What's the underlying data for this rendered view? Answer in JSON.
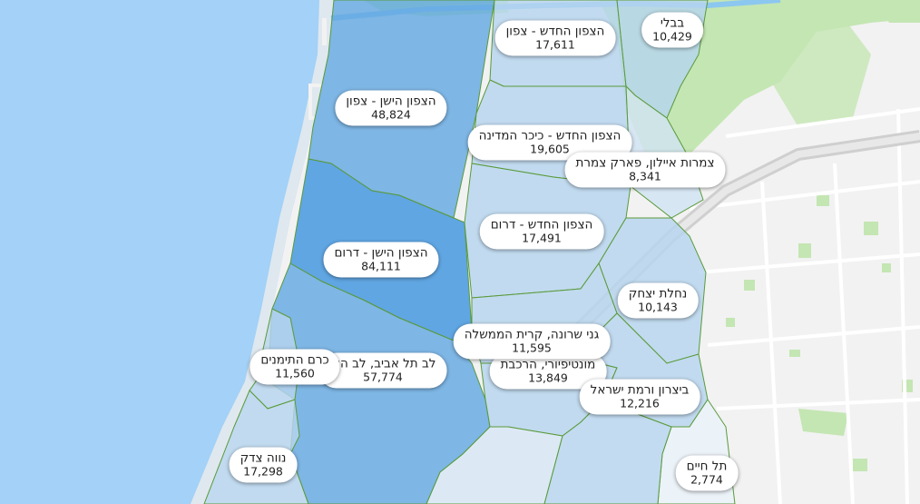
{
  "colors": {
    "sea": "#a3d1f7",
    "land": "#f2f2f2",
    "park": "#c4e6b3",
    "border": "#5a9a3a",
    "choropleth_scale": [
      "#e9f1f9",
      "#d1e3f3",
      "#b6d4ee",
      "#8fbde6",
      "#64a8e2",
      "#3f95df"
    ]
  },
  "neighborhoods": [
    {
      "id": "bavli",
      "name": "בבלי",
      "count": "10,429",
      "value": 10429
    },
    {
      "id": "tzafon-hahadash-north",
      "name": "הצפון החדש - צפון",
      "count": "17,611",
      "value": 17611
    },
    {
      "id": "tzafon-hayashan-north",
      "name": "הצפון הישן - צפון",
      "count": "48,824",
      "value": 48824
    },
    {
      "id": "tzafon-hahadash-kikar",
      "name": "הצפון החדש - כיכר המדינה",
      "count": "19,605",
      "value": 19605
    },
    {
      "id": "tzameret",
      "name": "צמרות איילון, פארק צמרת",
      "count": "8,341",
      "value": 8341
    },
    {
      "id": "tzafon-hahadash-south",
      "name": "הצפון החדש - דרום",
      "count": "17,491",
      "value": 17491
    },
    {
      "id": "tzafon-hayashan-south",
      "name": "הצפון הישן - דרום",
      "count": "84,111",
      "value": 84111
    },
    {
      "id": "nahalat-yitzhak",
      "name": "נחלת יצחק",
      "count": "10,143",
      "value": 10143
    },
    {
      "id": "ganei-sarona",
      "name": "גני שרונה, קרית הממשלה",
      "count": "11,595",
      "value": 11595
    },
    {
      "id": "lev-tel-aviv",
      "name": "לב תל אביב, לב העי",
      "count": "57,774",
      "value": 57774
    },
    {
      "id": "kerem-hateimanim",
      "name": "כרם התימנים",
      "count": "11,560",
      "value": 11560
    },
    {
      "id": "montefiore",
      "name": "מונטיפיורי, הרכבת",
      "count": "13,849",
      "value": 13849
    },
    {
      "id": "bitzaron",
      "name": "ביצרון ורמת ישראל",
      "count": "12,216",
      "value": 12216
    },
    {
      "id": "neve-tzedek",
      "name": "נווה צדק",
      "count": "17,298",
      "value": 17298
    },
    {
      "id": "tel-haim",
      "name": "תל חיים",
      "count": "2,774",
      "value": 2774
    }
  ]
}
